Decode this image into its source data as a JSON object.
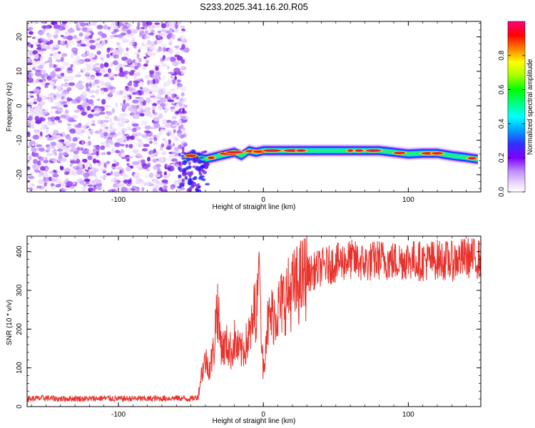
{
  "title": "S233.2025.341.16.20.R05",
  "chart_data": [
    {
      "type": "heatmap",
      "panel": "spectrogram",
      "xlabel": "Height of straight line (km)",
      "ylabel": "Frequency (Hz)",
      "xlim": [
        -163,
        150
      ],
      "ylim": [
        -25,
        24.5
      ],
      "xticks": [
        -100,
        0,
        100
      ],
      "yticks": [
        20,
        10,
        0,
        -10,
        -20
      ],
      "noise_region_x": [
        -163,
        -53
      ],
      "signal_frequency_trace": {
        "x": [
          -55,
          -50,
          -45,
          -40,
          -35,
          -30,
          -25,
          -20,
          -15,
          -10,
          -5,
          0,
          10,
          20,
          30,
          40,
          50,
          60,
          70,
          80,
          90,
          100,
          110,
          120,
          130,
          140,
          148
        ],
        "y": [
          -15.5,
          -14.5,
          -15,
          -15.5,
          -15,
          -14.5,
          -14,
          -13.5,
          -14.5,
          -13,
          -13.5,
          -13,
          -13,
          -13,
          -13,
          -13,
          -13,
          -13,
          -13,
          -13,
          -13.5,
          -14,
          -13.8,
          -13.8,
          -14.5,
          -15,
          -15.5
        ]
      },
      "colorbar": {
        "label": "Normalized spectral amplitude",
        "range": [
          0,
          1
        ],
        "ticks": [
          "0.0",
          "0.2",
          "0.4",
          "0.6",
          "0.8"
        ]
      }
    },
    {
      "type": "line",
      "panel": "snr",
      "xlabel": "Height of straight line (km)",
      "ylabel": "SNR (10 * v/v)",
      "xlim": [
        -163,
        150
      ],
      "ylim": [
        0,
        440
      ],
      "xticks": [
        -100,
        0,
        100
      ],
      "yticks": [
        0,
        100,
        200,
        300,
        400
      ],
      "series": [
        {
          "name": "SNR",
          "color": "#e8322c",
          "x": [
            -163,
            -150,
            -140,
            -130,
            -120,
            -110,
            -100,
            -90,
            -80,
            -70,
            -60,
            -50,
            -45,
            -43,
            -40,
            -37,
            -34,
            -32,
            -30,
            -28,
            -25,
            -22,
            -20,
            -18,
            -15,
            -12,
            -10,
            -8,
            -6,
            -4,
            -3,
            -1,
            0,
            2,
            5,
            10,
            15,
            20,
            25,
            30,
            40,
            50,
            60,
            70,
            80,
            90,
            100,
            110,
            120,
            130,
            140,
            150
          ],
          "y": [
            20,
            22,
            20,
            21,
            20,
            22,
            20,
            21,
            20,
            21,
            22,
            20,
            25,
            80,
            120,
            100,
            150,
            275,
            180,
            150,
            160,
            140,
            170,
            150,
            140,
            160,
            180,
            200,
            250,
            260,
            410,
            150,
            90,
            200,
            230,
            250,
            280,
            300,
            320,
            340,
            360,
            370,
            380,
            370,
            380,
            375,
            380,
            375,
            380,
            375,
            385,
            380
          ]
        }
      ]
    }
  ]
}
